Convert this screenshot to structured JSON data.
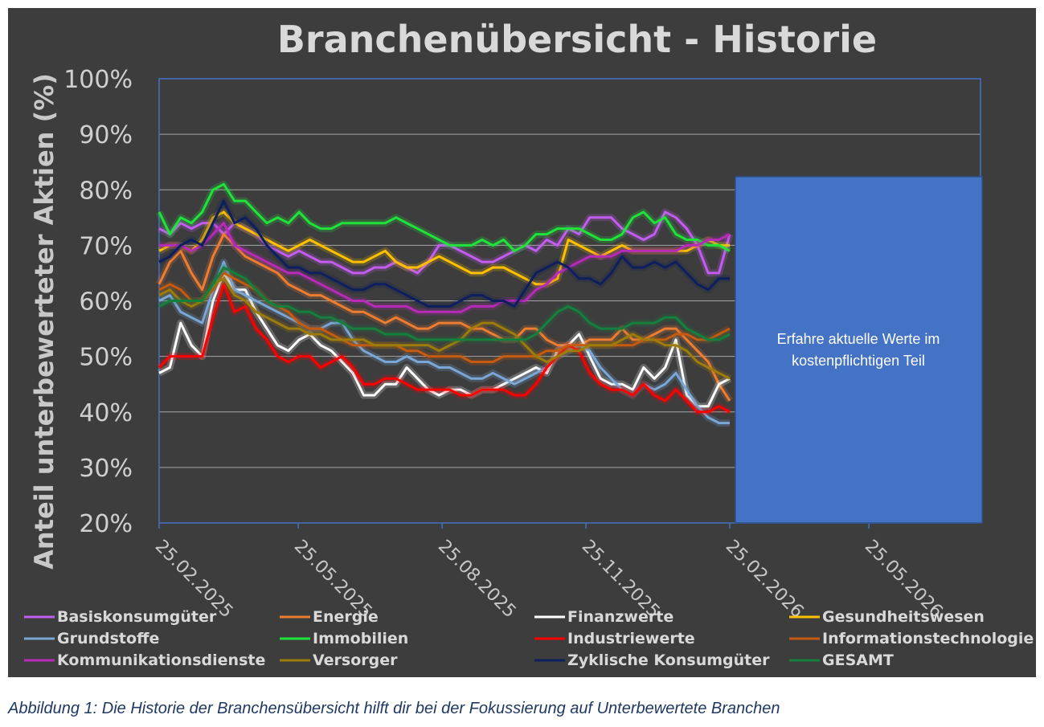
{
  "caption": "Abbildung 1: Die Historie der Branchensübersicht hilft dir bei der Fokussierung auf Unterbewertete Branchen",
  "overlay": {
    "line1": "Erfahre aktuelle Werte im",
    "line2": "kostenpflichtigen Teil",
    "color": "#4472c4"
  },
  "chart_data": {
    "type": "line",
    "title": "Branchenübersicht - Historie",
    "xlabel": "",
    "ylabel": "Anteil unterbewerteter Aktien (%)",
    "ylim": [
      20,
      100
    ],
    "yticks": [
      "100%",
      "90%",
      "80%",
      "70%",
      "60%",
      "50%",
      "40%",
      "30%",
      "20%"
    ],
    "xticks": [
      "25.02.2025",
      "25.05.2025",
      "25.08.2025",
      "25.11.2025",
      "25.02.2026",
      "25.05.2026"
    ],
    "x_start": "25.02.2025",
    "x_end": "25.02.2026",
    "grid": true,
    "legend_position": "bottom",
    "series": [
      {
        "name": "Basiskonsumgüter",
        "color": "#c35df0",
        "values": [
          73,
          72,
          74,
          73,
          74,
          74,
          72,
          74,
          73,
          72,
          70,
          69,
          68,
          69,
          68,
          67,
          67,
          66,
          65,
          65,
          66,
          66,
          67,
          66,
          65,
          67,
          70,
          70,
          69,
          68,
          67,
          67,
          68,
          69,
          70,
          69,
          71,
          70,
          73,
          72,
          75,
          75,
          75,
          73,
          72,
          71,
          72,
          76,
          75,
          73,
          70,
          65,
          65,
          72
        ]
      },
      {
        "name": "Energie",
        "color": "#ed7d31",
        "values": [
          63,
          67,
          69,
          65,
          62,
          68,
          72,
          70,
          68,
          67,
          66,
          65,
          63,
          62,
          61,
          61,
          60,
          59,
          58,
          58,
          57,
          56,
          57,
          56,
          55,
          55,
          56,
          56,
          56,
          55,
          55,
          54,
          53,
          53,
          55,
          55,
          53,
          52,
          52,
          52,
          53,
          53,
          53,
          55,
          53,
          53,
          54,
          55,
          55,
          53,
          51,
          49,
          45,
          42
        ]
      },
      {
        "name": "Finanzwerte",
        "color": "#ffffff",
        "values": [
          47,
          48,
          56,
          52,
          50,
          60,
          65,
          62,
          62,
          58,
          55,
          52,
          51,
          53,
          54,
          52,
          51,
          49,
          47,
          43,
          43,
          45,
          45,
          48,
          46,
          44,
          43,
          44,
          44,
          43,
          44,
          44,
          45,
          46,
          47,
          48,
          47,
          51,
          52,
          54,
          50,
          46,
          45,
          45,
          44,
          48,
          46,
          48,
          53,
          43,
          41,
          41,
          45,
          46
        ]
      },
      {
        "name": "Gesundheitswesen",
        "color": "#ffc000",
        "values": [
          69,
          70,
          70,
          69,
          71,
          75,
          76,
          74,
          73,
          72,
          71,
          70,
          69,
          70,
          71,
          70,
          69,
          68,
          67,
          67,
          68,
          69,
          67,
          66,
          66,
          67,
          68,
          67,
          66,
          65,
          65,
          66,
          66,
          65,
          64,
          63,
          63,
          64,
          71,
          70,
          69,
          68,
          69,
          70,
          69,
          69,
          69,
          69,
          69,
          69,
          70,
          71,
          70,
          70
        ]
      },
      {
        "name": "Grundstoffe",
        "color": "#7ba7d6",
        "values": [
          60,
          61,
          58,
          57,
          56,
          62,
          67,
          62,
          61,
          60,
          59,
          58,
          57,
          56,
          55,
          55,
          56,
          56,
          53,
          51,
          50,
          49,
          49,
          50,
          49,
          49,
          48,
          48,
          47,
          46,
          46,
          47,
          46,
          45,
          46,
          47,
          48,
          50,
          51,
          52,
          51,
          48,
          46,
          44,
          43,
          45,
          44,
          45,
          47,
          44,
          41,
          39,
          38,
          38
        ]
      },
      {
        "name": "Immobilien",
        "color": "#21e23a",
        "values": [
          76,
          72,
          75,
          74,
          76,
          80,
          81,
          78,
          78,
          76,
          74,
          75,
          74,
          76,
          74,
          73,
          73,
          74,
          74,
          74,
          74,
          74,
          75,
          74,
          73,
          72,
          71,
          70,
          70,
          70,
          71,
          70,
          71,
          69,
          70,
          72,
          72,
          73,
          73,
          73,
          72,
          71,
          71,
          72,
          75,
          76,
          74,
          75,
          72,
          71,
          71,
          70,
          70,
          69
        ]
      },
      {
        "name": "Industriewerte",
        "color": "#ff0000",
        "values": [
          48,
          50,
          50,
          50,
          50,
          57,
          63,
          58,
          59,
          55,
          53,
          50,
          49,
          50,
          50,
          48,
          49,
          50,
          48,
          45,
          45,
          46,
          46,
          45,
          44,
          44,
          44,
          44,
          43,
          43,
          44,
          44,
          44,
          43,
          43,
          45,
          48,
          50,
          52,
          51,
          47,
          45,
          44,
          44,
          43,
          45,
          43,
          42,
          44,
          42,
          40,
          40,
          41,
          40
        ]
      },
      {
        "name": "Informationstechnologie",
        "color": "#c55a11",
        "values": [
          62,
          63,
          62,
          60,
          60,
          62,
          65,
          64,
          63,
          62,
          60,
          59,
          58,
          56,
          55,
          55,
          54,
          53,
          52,
          52,
          52,
          52,
          52,
          51,
          51,
          50,
          50,
          50,
          50,
          49,
          49,
          49,
          50,
          50,
          50,
          50,
          51,
          51,
          52,
          52,
          52,
          52,
          52,
          52,
          52,
          53,
          53,
          53,
          54,
          54,
          53,
          53,
          54,
          55
        ]
      },
      {
        "name": "Kommunikationsdienste",
        "color": "#b62bb8",
        "values": [
          70,
          70,
          70,
          69,
          70,
          72,
          74,
          70,
          69,
          68,
          67,
          66,
          65,
          65,
          64,
          63,
          62,
          61,
          60,
          60,
          59,
          59,
          59,
          59,
          58,
          58,
          58,
          58,
          58,
          59,
          59,
          59,
          60,
          60,
          60,
          62,
          63,
          65,
          66,
          67,
          68,
          68,
          68,
          69,
          69,
          69,
          69,
          69,
          69,
          70,
          70,
          71,
          71,
          72
        ]
      },
      {
        "name": "Versorger",
        "color": "#9e7c0c",
        "values": [
          61,
          62,
          60,
          59,
          60,
          63,
          64,
          61,
          60,
          58,
          57,
          56,
          55,
          55,
          54,
          54,
          53,
          53,
          53,
          53,
          52,
          52,
          52,
          52,
          52,
          52,
          51,
          52,
          53,
          55,
          56,
          56,
          55,
          54,
          52,
          50,
          49,
          50,
          51,
          51,
          52,
          52,
          52,
          53,
          54,
          53,
          53,
          52,
          52,
          51,
          49,
          48,
          47,
          46
        ]
      },
      {
        "name": "Zyklische Konsumgüter",
        "color": "#0d1f5c",
        "values": [
          67,
          68,
          70,
          71,
          70,
          74,
          78,
          74,
          75,
          73,
          70,
          68,
          66,
          66,
          65,
          65,
          64,
          63,
          62,
          62,
          63,
          63,
          62,
          61,
          60,
          59,
          59,
          59,
          60,
          61,
          61,
          60,
          60,
          59,
          62,
          65,
          66,
          67,
          66,
          64,
          64,
          63,
          65,
          68,
          66,
          66,
          67,
          66,
          67,
          65,
          63,
          62,
          64,
          64
        ]
      },
      {
        "name": "GESAMT",
        "color": "#15803d",
        "values": [
          59,
          60,
          60,
          60,
          60,
          63,
          66,
          65,
          64,
          62,
          60,
          59,
          59,
          58,
          58,
          57,
          57,
          56,
          55,
          55,
          55,
          54,
          54,
          54,
          53,
          53,
          53,
          53,
          53,
          53,
          53,
          53,
          53,
          53,
          53,
          54,
          56,
          58,
          59,
          58,
          56,
          55,
          55,
          55,
          56,
          56,
          56,
          57,
          57,
          55,
          54,
          53,
          53,
          54
        ]
      }
    ]
  }
}
